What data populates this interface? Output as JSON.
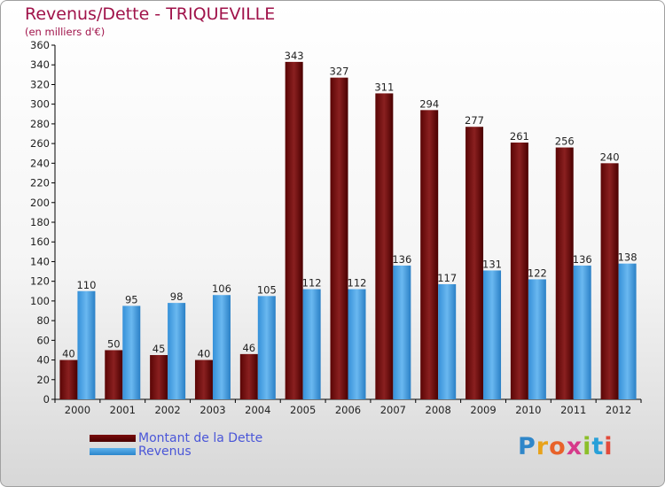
{
  "title": "Revenus/Dette - TRIQUEVILLE",
  "subtitle": "(en milliers d'€)",
  "chart_data": {
    "type": "bar",
    "categories": [
      "2000",
      "2001",
      "2002",
      "2003",
      "2004",
      "2005",
      "2006",
      "2007",
      "2008",
      "2009",
      "2010",
      "2011",
      "2012"
    ],
    "series": [
      {
        "name": "Montant de la Dette",
        "values": [
          40,
          50,
          45,
          40,
          46,
          343,
          327,
          311,
          294,
          277,
          261,
          256,
          240
        ],
        "color": "#6e0a0a"
      },
      {
        "name": "Revenus",
        "values": [
          110,
          95,
          98,
          106,
          105,
          112,
          112,
          136,
          117,
          131,
          122,
          136,
          138
        ],
        "color": "#4aa3e6"
      }
    ],
    "ylim": [
      0,
      360
    ],
    "yticks": [
      0,
      20,
      40,
      60,
      80,
      100,
      120,
      140,
      160,
      180,
      200,
      220,
      240,
      260,
      280,
      300,
      320,
      340,
      360
    ],
    "grid": false,
    "legend": "bottom-left"
  },
  "legend": {
    "debt_label": "Montant de la Dette",
    "revenue_label": "Revenus"
  },
  "logo": {
    "letters": [
      "P",
      "r",
      "o",
      "x",
      "i",
      "t",
      "i"
    ],
    "colors": [
      "#2f86c9",
      "#e8a21a",
      "#e8622a",
      "#d63a8a",
      "#8cbf2a",
      "#28a0d8",
      "#e24a3a"
    ]
  }
}
